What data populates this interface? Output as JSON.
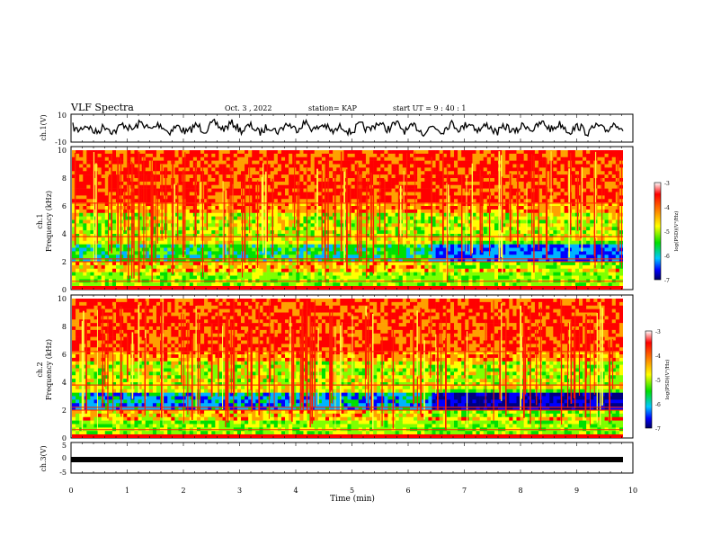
{
  "header": {
    "title": "VLF Spectra",
    "date": "Oct. 3 , 2022",
    "station": "station= KAP",
    "start_ut": "start UT = 9 : 40 : 1"
  },
  "chart_data": [
    {
      "type": "line",
      "name": "ch1-waveform",
      "ylabel": "ch.1(V)",
      "ylim": [
        -10,
        10
      ],
      "yticks": [
        "10",
        "-10"
      ],
      "xlim": [
        0,
        10
      ],
      "note": "noisy waveform, amplitude roughly ±5 V"
    },
    {
      "type": "heatmap",
      "name": "ch1-spectrogram",
      "ylabel": "ch.1\nFrequency (kHz)",
      "ylabel_lines": [
        "ch.1",
        "Frequency (kHz)"
      ],
      "ylim": [
        0,
        10
      ],
      "yticks": [
        "0",
        "2",
        "4",
        "6",
        "8",
        "10"
      ],
      "xlim": [
        0,
        9.85
      ],
      "colorbar": {
        "label": "log(PSD)(V²/Hz)",
        "range": [
          -7,
          -3
        ],
        "ticks": [
          "-3",
          "-4",
          "-5",
          "-6",
          "-7"
        ]
      }
    },
    {
      "type": "heatmap",
      "name": "ch2-spectrogram",
      "ylabel_lines": [
        "ch.2",
        "Frequency (kHz)"
      ],
      "ylim": [
        0,
        10
      ],
      "yticks": [
        "0",
        "2",
        "4",
        "6",
        "8",
        "10"
      ],
      "xlim": [
        0,
        9.85
      ],
      "colorbar": {
        "label": "log(PSD)(V²/Hz)",
        "range": [
          -7,
          -3
        ],
        "ticks": [
          "-3",
          "-4",
          "-5",
          "-6",
          "-7"
        ]
      }
    },
    {
      "type": "line",
      "name": "ch3-trace",
      "ylabel": "ch.3(V)",
      "ylim": [
        -5,
        5
      ],
      "yticks": [
        "5",
        "0",
        "-5"
      ],
      "xlim": [
        0,
        10
      ],
      "xlabel": "Time (min)",
      "xticks": [
        "0",
        "1",
        "2",
        "3",
        "4",
        "5",
        "6",
        "7",
        "8",
        "9",
        "10"
      ],
      "note": "flat thick trace near -0.8 V"
    }
  ],
  "colors": {
    "low": "#000080",
    "mid_low": "#0000ff",
    "mid": "#00e000",
    "mid_high": "#ffff00",
    "high": "#ff0000",
    "top": "#ffffff"
  }
}
